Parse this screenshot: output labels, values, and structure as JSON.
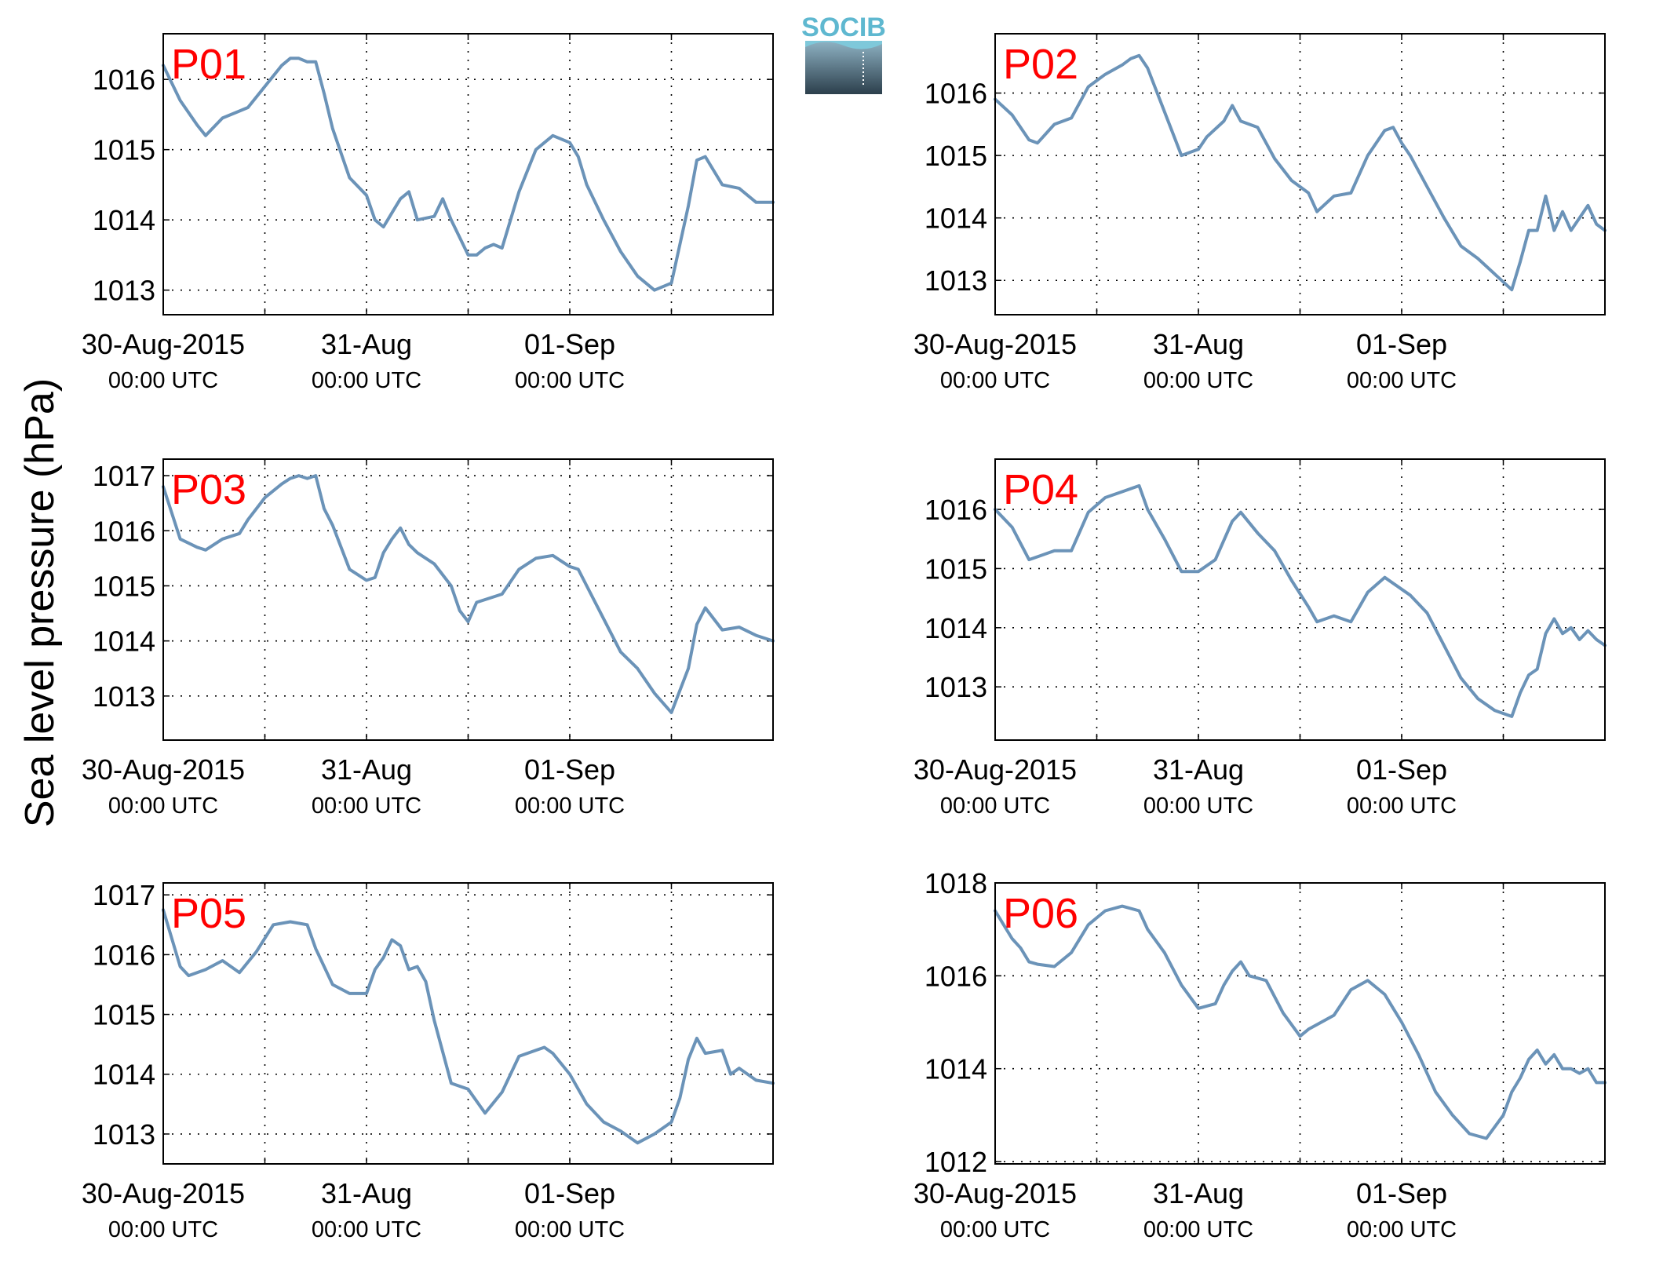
{
  "figure": {
    "ylabel": "Sea level pressure (hPa)",
    "logo_text": "SOCIB",
    "line_color": "#6b93b8",
    "panel_label_color": "#ff0000",
    "grid": true
  },
  "chart_data": [
    {
      "type": "line",
      "panel_label": "P01",
      "xlabels": [
        [
          "30-Aug-2015",
          "00:00 UTC"
        ],
        [
          "31-Aug",
          "00:00 UTC"
        ],
        [
          "01-Sep",
          "00:00 UTC"
        ]
      ],
      "xlim": [
        "30-Aug-2015 00:00",
        "01-Sep-2015 00:00"
      ],
      "ylim": [
        1012.65,
        1016.65
      ],
      "yticks": [
        1013,
        1014,
        1015,
        1016
      ],
      "series": [
        {
          "x_hours": [
            0,
            2,
            4,
            5,
            7,
            9,
            10,
            12,
            14,
            15,
            16,
            17,
            18,
            19,
            20,
            22,
            24,
            25,
            26,
            27,
            28,
            29,
            30,
            32,
            33,
            34,
            35,
            36,
            37,
            38,
            39,
            40,
            42,
            44,
            46,
            48,
            49,
            50,
            52,
            54,
            56,
            58,
            60,
            62,
            63,
            64,
            66,
            68,
            70,
            72
          ],
          "y": [
            1016.2,
            1015.7,
            1015.35,
            1015.2,
            1015.45,
            1015.55,
            1015.6,
            1015.9,
            1016.2,
            1016.3,
            1016.3,
            1016.25,
            1016.25,
            1015.8,
            1015.3,
            1014.6,
            1014.35,
            1014.0,
            1013.9,
            1014.1,
            1014.3,
            1014.4,
            1014.0,
            1014.05,
            1014.3,
            1014.0,
            1013.75,
            1013.5,
            1013.5,
            1013.6,
            1013.65,
            1013.6,
            1014.4,
            1015.0,
            1015.2,
            1015.1,
            1014.9,
            1014.5,
            1014.0,
            1013.55,
            1013.2,
            1013.0,
            1013.1,
            1014.2,
            1014.85,
            1014.9,
            1014.5,
            1014.45,
            1014.25,
            1014.25
          ]
        }
      ]
    },
    {
      "type": "line",
      "panel_label": "P02",
      "xlabels": [
        [
          "30-Aug-2015",
          "00:00 UTC"
        ],
        [
          "31-Aug",
          "00:00 UTC"
        ],
        [
          "01-Sep",
          "00:00 UTC"
        ]
      ],
      "xlim": [
        "30-Aug-2015 00:00",
        "01-Sep-2015 00:00"
      ],
      "ylim": [
        1012.45,
        1016.95
      ],
      "yticks": [
        1013,
        1014,
        1015,
        1016
      ],
      "series": [
        {
          "x_hours": [
            0,
            2,
            4,
            5,
            7,
            9,
            11,
            13,
            15,
            16,
            17,
            18,
            20,
            22,
            24,
            25,
            27,
            28,
            29,
            31,
            33,
            35,
            37,
            38,
            40,
            42,
            44,
            46,
            47,
            48,
            49,
            51,
            53,
            55,
            57,
            59,
            61,
            62,
            63,
            64,
            65,
            66,
            67,
            68,
            69,
            70,
            71,
            72
          ],
          "y": [
            1015.9,
            1015.65,
            1015.25,
            1015.2,
            1015.5,
            1015.6,
            1016.1,
            1016.3,
            1016.45,
            1016.55,
            1016.6,
            1016.4,
            1015.7,
            1015.0,
            1015.1,
            1015.3,
            1015.55,
            1015.8,
            1015.55,
            1015.45,
            1014.95,
            1014.6,
            1014.4,
            1014.1,
            1014.35,
            1014.4,
            1015.0,
            1015.4,
            1015.45,
            1015.2,
            1015.0,
            1014.5,
            1014.0,
            1013.55,
            1013.35,
            1013.1,
            1012.85,
            1013.3,
            1013.8,
            1013.8,
            1014.35,
            1013.8,
            1014.1,
            1013.8,
            1014.0,
            1014.2,
            1013.9,
            1013.8
          ]
        }
      ]
    },
    {
      "type": "line",
      "panel_label": "P03",
      "xlabels": [
        [
          "30-Aug-2015",
          "00:00 UTC"
        ],
        [
          "31-Aug",
          "00:00 UTC"
        ],
        [
          "01-Sep",
          "00:00 UTC"
        ]
      ],
      "xlim": [
        "30-Aug-2015 00:00",
        "01-Sep-2015 00:00"
      ],
      "ylim": [
        1012.2,
        1017.3
      ],
      "yticks": [
        1013,
        1014,
        1015,
        1016,
        1017
      ],
      "series": [
        {
          "x_hours": [
            0,
            2,
            4,
            5,
            7,
            9,
            10,
            12,
            14,
            15,
            16,
            17,
            18,
            19,
            20,
            22,
            24,
            25,
            26,
            27,
            28,
            29,
            30,
            32,
            34,
            35,
            36,
            37,
            38,
            39,
            40,
            42,
            44,
            46,
            47,
            48,
            49,
            50,
            52,
            54,
            56,
            58,
            60,
            62,
            63,
            64,
            66,
            68,
            70,
            72
          ],
          "y": [
            1016.8,
            1015.85,
            1015.7,
            1015.65,
            1015.85,
            1015.95,
            1016.2,
            1016.6,
            1016.85,
            1016.95,
            1017.0,
            1016.95,
            1017.0,
            1016.4,
            1016.1,
            1015.3,
            1015.1,
            1015.15,
            1015.6,
            1015.85,
            1016.05,
            1015.75,
            1015.6,
            1015.4,
            1015.0,
            1014.55,
            1014.35,
            1014.7,
            1014.75,
            1014.8,
            1014.85,
            1015.3,
            1015.5,
            1015.55,
            1015.45,
            1015.35,
            1015.3,
            1015.0,
            1014.4,
            1013.8,
            1013.5,
            1013.05,
            1012.7,
            1013.5,
            1014.3,
            1014.6,
            1014.2,
            1014.25,
            1014.1,
            1014.0
          ]
        }
      ]
    },
    {
      "type": "line",
      "panel_label": "P04",
      "xlabels": [
        [
          "30-Aug-2015",
          "00:00 UTC"
        ],
        [
          "31-Aug",
          "00:00 UTC"
        ],
        [
          "01-Sep",
          "00:00 UTC"
        ]
      ],
      "xlim": [
        "30-Aug-2015 00:00",
        "01-Sep-2015 00:00"
      ],
      "ylim": [
        1012.1,
        1016.85
      ],
      "yticks": [
        1013,
        1014,
        1015,
        1016
      ],
      "series": [
        {
          "x_hours": [
            0,
            2,
            4,
            5,
            7,
            9,
            11,
            13,
            15,
            17,
            18,
            20,
            22,
            24,
            26,
            28,
            29,
            31,
            33,
            35,
            37,
            38,
            40,
            42,
            44,
            46,
            48,
            49,
            51,
            53,
            55,
            57,
            59,
            61,
            62,
            63,
            64,
            65,
            66,
            67,
            68,
            69,
            70,
            71,
            72
          ],
          "y": [
            1016.0,
            1015.7,
            1015.15,
            1015.2,
            1015.3,
            1015.3,
            1015.95,
            1016.2,
            1016.3,
            1016.4,
            1016.0,
            1015.5,
            1014.95,
            1014.95,
            1015.15,
            1015.8,
            1015.95,
            1015.6,
            1015.3,
            1014.8,
            1014.35,
            1014.1,
            1014.2,
            1014.1,
            1014.6,
            1014.85,
            1014.65,
            1014.55,
            1014.25,
            1013.7,
            1013.15,
            1012.8,
            1012.6,
            1012.5,
            1012.9,
            1013.2,
            1013.3,
            1013.9,
            1014.15,
            1013.9,
            1014.0,
            1013.8,
            1013.95,
            1013.8,
            1013.7
          ]
        }
      ]
    },
    {
      "type": "line",
      "panel_label": "P05",
      "xlabels": [
        [
          "30-Aug-2015",
          "00:00 UTC"
        ],
        [
          "31-Aug",
          "00:00 UTC"
        ],
        [
          "01-Sep",
          "00:00 UTC"
        ]
      ],
      "xlim": [
        "30-Aug-2015 00:00",
        "01-Sep-2015 00:00"
      ],
      "ylim": [
        1012.5,
        1017.2
      ],
      "yticks": [
        1013,
        1014,
        1015,
        1016,
        1017
      ],
      "series": [
        {
          "x_hours": [
            0,
            2,
            3,
            5,
            7,
            9,
            11,
            13,
            15,
            17,
            18,
            20,
            22,
            24,
            25,
            26,
            27,
            28,
            29,
            30,
            31,
            32,
            34,
            36,
            38,
            40,
            42,
            44,
            45,
            46,
            48,
            50,
            52,
            54,
            56,
            58,
            60,
            61,
            62,
            63,
            64,
            66,
            67,
            68,
            70,
            72
          ],
          "y": [
            1016.75,
            1015.8,
            1015.65,
            1015.75,
            1015.9,
            1015.7,
            1016.05,
            1016.5,
            1016.55,
            1016.5,
            1016.1,
            1015.5,
            1015.35,
            1015.35,
            1015.75,
            1015.95,
            1016.25,
            1016.15,
            1015.75,
            1015.8,
            1015.55,
            1014.9,
            1013.85,
            1013.75,
            1013.35,
            1013.7,
            1014.3,
            1014.4,
            1014.45,
            1014.35,
            1014.0,
            1013.5,
            1013.2,
            1013.05,
            1012.85,
            1013.0,
            1013.2,
            1013.6,
            1014.25,
            1014.6,
            1014.35,
            1014.4,
            1014.0,
            1014.1,
            1013.9,
            1013.85
          ]
        }
      ]
    },
    {
      "type": "line",
      "panel_label": "P06",
      "xlabels": [
        [
          "30-Aug-2015",
          "00:00 UTC"
        ],
        [
          "31-Aug",
          "00:00 UTC"
        ],
        [
          "01-Sep",
          "00:00 UTC"
        ]
      ],
      "xlim": [
        "30-Aug-2015 00:00",
        "01-Sep-2015 00:00"
      ],
      "ylim": [
        1011.95,
        1018.0
      ],
      "yticks": [
        1012,
        1014,
        1016,
        1018
      ],
      "series": [
        {
          "x_hours": [
            0,
            2,
            3,
            4,
            5,
            7,
            9,
            11,
            13,
            15,
            17,
            18,
            20,
            22,
            24,
            26,
            27,
            28,
            29,
            30,
            32,
            34,
            36,
            37,
            38,
            40,
            42,
            44,
            46,
            47,
            48,
            50,
            52,
            54,
            56,
            58,
            60,
            61,
            62,
            63,
            64,
            65,
            66,
            67,
            68,
            69,
            70,
            71,
            72
          ],
          "y": [
            1017.4,
            1016.8,
            1016.6,
            1016.3,
            1016.25,
            1016.2,
            1016.5,
            1017.1,
            1017.4,
            1017.5,
            1017.4,
            1017.0,
            1016.5,
            1015.8,
            1015.3,
            1015.4,
            1015.8,
            1016.1,
            1016.3,
            1016.0,
            1015.9,
            1015.2,
            1014.7,
            1014.85,
            1014.95,
            1015.15,
            1015.7,
            1015.9,
            1015.6,
            1015.3,
            1015.0,
            1014.3,
            1013.5,
            1013.0,
            1012.6,
            1012.5,
            1013.0,
            1013.5,
            1013.8,
            1014.2,
            1014.4,
            1014.1,
            1014.3,
            1014.0,
            1014.0,
            1013.9,
            1014.0,
            1013.7,
            1013.7
          ]
        }
      ]
    }
  ]
}
